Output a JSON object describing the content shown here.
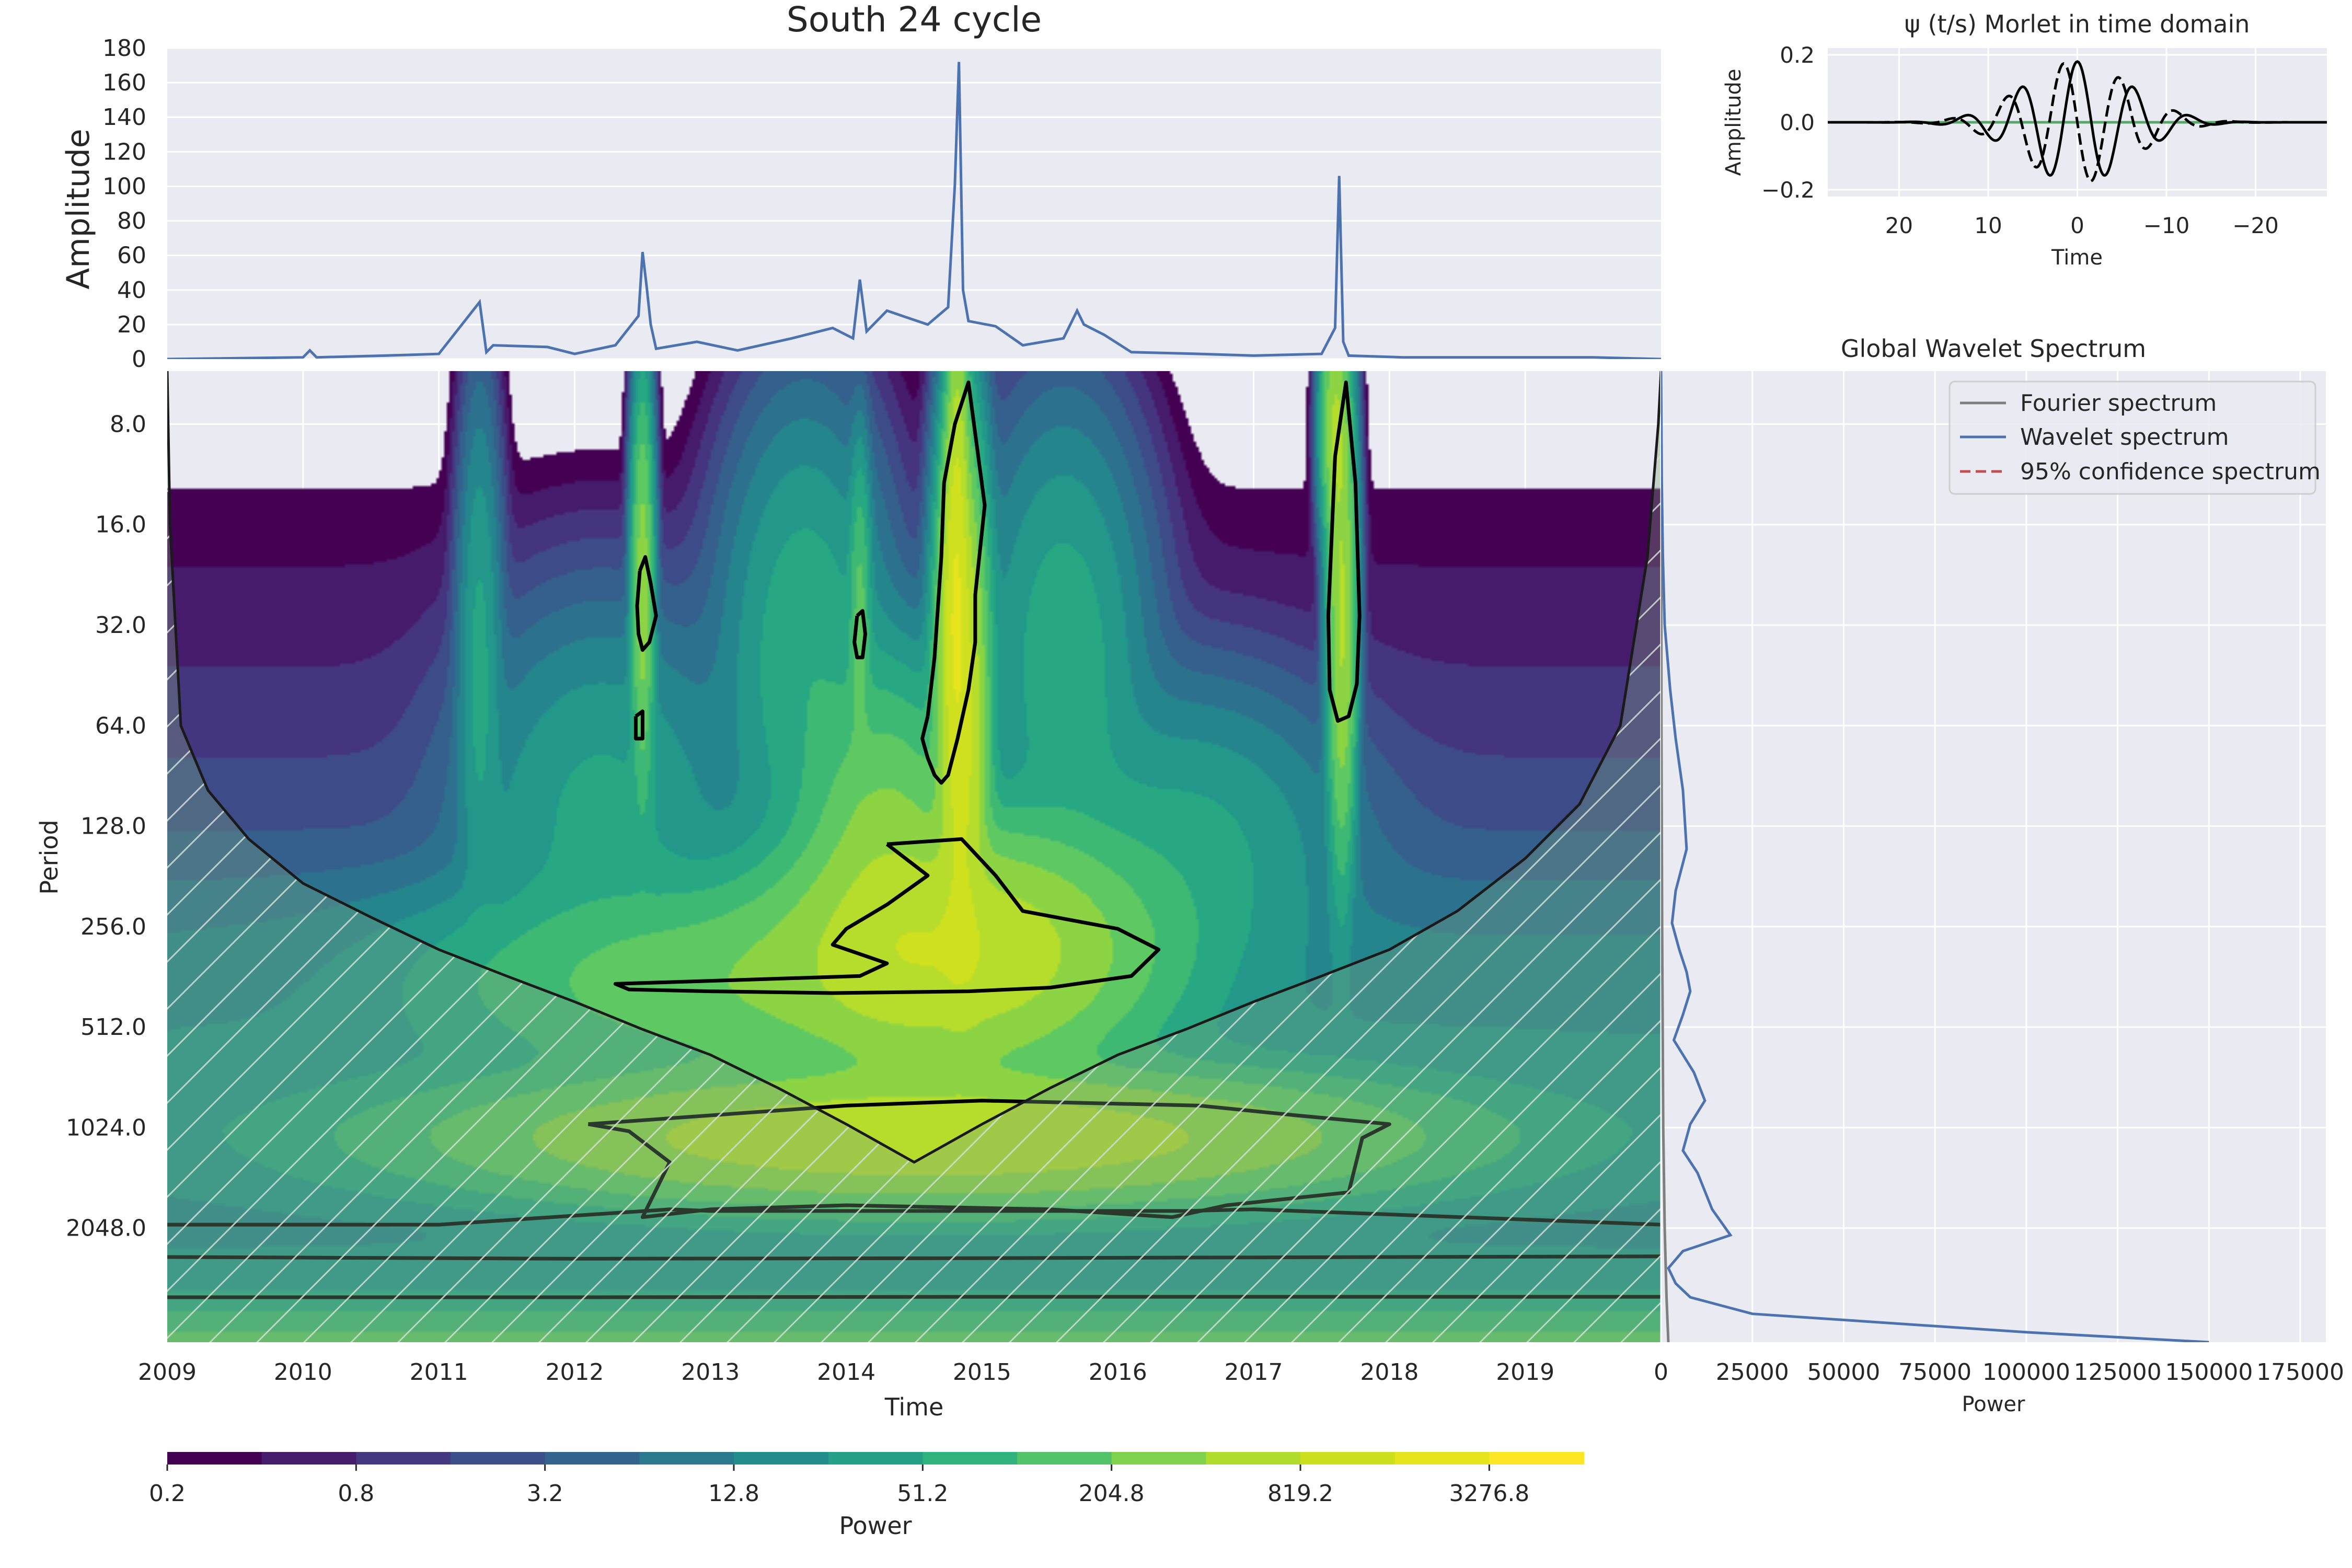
{
  "chart_data": [
    {
      "id": "amplitude",
      "type": "line",
      "title": "South 24 cycle",
      "xlabel": "",
      "ylabel": "Amplitude",
      "xlim": [
        2009.0,
        2020.0
      ],
      "ylim": [
        0,
        180
      ],
      "y_ticks": [
        0,
        20,
        40,
        60,
        80,
        100,
        120,
        140,
        160,
        180
      ],
      "grid": true,
      "color": "#4C72B0",
      "series": [
        {
          "x": [
            2009.0,
            2010.0,
            2010.05,
            2010.1,
            2010.6,
            2011.0,
            2011.3,
            2011.35,
            2011.4,
            2011.8,
            2012.0,
            2012.3,
            2012.47,
            2012.5,
            2012.53,
            2012.56,
            2012.6,
            2012.9,
            2013.2,
            2013.6,
            2013.9,
            2014.05,
            2014.1,
            2014.15,
            2014.3,
            2014.45,
            2014.6,
            2014.75,
            2014.8,
            2014.83,
            2014.86,
            2014.9,
            2015.1,
            2015.3,
            2015.6,
            2015.7,
            2015.75,
            2015.9,
            2016.1,
            2016.6,
            2017.0,
            2017.5,
            2017.6,
            2017.63,
            2017.66,
            2017.7,
            2018.1,
            2018.5,
            2019.0,
            2019.5,
            2020.0
          ],
          "y": [
            0,
            1,
            5,
            1,
            2,
            3,
            33,
            4,
            8,
            7,
            3,
            8,
            25,
            62,
            42,
            20,
            6,
            10,
            5,
            12,
            18,
            12,
            46,
            16,
            28,
            24,
            20,
            30,
            101,
            172,
            40,
            22,
            19,
            8,
            12,
            28,
            20,
            14,
            4,
            3,
            2,
            3,
            18,
            106,
            10,
            2,
            1,
            1,
            1,
            1,
            0
          ]
        }
      ]
    },
    {
      "id": "morlet",
      "type": "line",
      "title": "ψ (t/s) Morlet in time domain",
      "xlabel": "Time",
      "ylabel": "Amplitude",
      "xlim": [
        28,
        -28
      ],
      "ylim": [
        -0.22,
        0.22
      ],
      "x_ticks": [
        20,
        10,
        0,
        -10,
        -20
      ],
      "x_tick_labels": [
        "20",
        "10",
        "0",
        "−10",
        "−20"
      ],
      "y_ticks": [
        0.2,
        0.0,
        -0.2
      ],
      "y_tick_labels": [
        "0.2",
        "0.0",
        "−0.2"
      ],
      "wavelet_w0": 6,
      "wavelet_width": 12,
      "series": [
        {
          "part": "real",
          "style": "solid",
          "color": "#000000"
        },
        {
          "part": "imaginary",
          "style": "dashed",
          "color": "#000000"
        },
        {
          "part": "zero",
          "style": "solid",
          "color": "#55A868",
          "values": [
            0
          ]
        }
      ]
    },
    {
      "id": "wavelet-power",
      "type": "heatmap",
      "xlabel": "Time",
      "ylabel": "Period",
      "xlim": [
        2009.0,
        2020.0
      ],
      "x_ticks": [
        2009,
        2010,
        2011,
        2012,
        2013,
        2014,
        2015,
        2016,
        2017,
        2018,
        2019
      ],
      "x_tick_labels": [
        "2009",
        "2010",
        "2011",
        "2012",
        "2013",
        "2014",
        "2015",
        "2016",
        "2017",
        "2018",
        "2019"
      ],
      "y_scale": "log2",
      "y_range": [
        5.55,
        4500
      ],
      "y_ticks": [
        8.0,
        16.0,
        32.0,
        64.0,
        128.0,
        256.0,
        512.0,
        1024.0,
        2048.0
      ],
      "y_tick_labels": [
        "8.0",
        "16.0",
        "32.0",
        "64.0",
        "128.0",
        "256.0",
        "512.0",
        "1024.0",
        "2048.0"
      ],
      "colorbar": {
        "label": "Power",
        "levels": [
          0.2,
          0.4,
          0.8,
          1.6,
          3.2,
          6.4,
          12.8,
          25.6,
          51.2,
          102.4,
          204.8,
          409.6,
          819.2,
          1638.4,
          3276.8,
          6553.6
        ],
        "tick_labels": [
          "0.2",
          "0.8",
          "3.2",
          "12.8",
          "51.2",
          "204.8",
          "819.2",
          "3276.8"
        ],
        "colors": [
          "#440154",
          "#472d7b",
          "#3b528b",
          "#2c728e",
          "#21918c",
          "#28ae80",
          "#5ec962",
          "#addc30",
          "#d8e219",
          "#fde725"
        ]
      },
      "blobs": [
        {
          "t": 2014.85,
          "period": 60,
          "logspan_t": 0.09,
          "logspan_p": 1.3,
          "power": 2200
        },
        {
          "t": 2014.8,
          "period": 28,
          "logspan_t": 0.05,
          "logspan_p": 0.9,
          "power": 2000
        },
        {
          "t": 2014.82,
          "period": 12,
          "logspan_t": 0.04,
          "logspan_p": 1.1,
          "power": 900
        },
        {
          "t": 2014.8,
          "period": 300,
          "logspan_t": 0.7,
          "logspan_p": 0.6,
          "power": 1400
        },
        {
          "t": 2014.3,
          "period": 160,
          "logspan_t": 0.3,
          "logspan_p": 0.9,
          "power": 500
        },
        {
          "t": 2013.3,
          "period": 380,
          "logspan_t": 1.2,
          "logspan_p": 0.5,
          "power": 320
        },
        {
          "t": 2014.6,
          "period": 1100,
          "logspan_t": 1.8,
          "logspan_p": 0.35,
          "power": 1400
        },
        {
          "t": 2012.5,
          "period": 25,
          "logspan_t": 0.04,
          "logspan_p": 1.0,
          "power": 600
        },
        {
          "t": 2017.65,
          "period": 30,
          "logspan_t": 0.05,
          "logspan_p": 1.2,
          "power": 900
        },
        {
          "t": 2017.6,
          "period": 8,
          "logspan_t": 0.05,
          "logspan_p": 0.6,
          "power": 800
        },
        {
          "t": 2014.1,
          "period": 30,
          "logspan_t": 0.04,
          "logspan_p": 0.8,
          "power": 220
        },
        {
          "t": 2013.7,
          "period": 40,
          "logspan_t": 0.3,
          "logspan_p": 1.2,
          "power": 90
        },
        {
          "t": 2015.6,
          "period": 40,
          "logspan_t": 0.3,
          "logspan_p": 1.2,
          "power": 80
        },
        {
          "t": 2011.3,
          "period": 40,
          "logspan_t": 0.08,
          "logspan_p": 1.3,
          "power": 60
        },
        {
          "t": 2012.2,
          "period": 120,
          "logspan_t": 0.5,
          "logspan_p": 1.0,
          "power": 60
        },
        {
          "t": 2016.5,
          "period": 150,
          "logspan_t": 0.6,
          "logspan_p": 0.8,
          "power": 60
        }
      ],
      "background_levels": [
        {
          "period": 5.55,
          "power": 0.05
        },
        {
          "period": 16,
          "power": 0.3
        },
        {
          "period": 64,
          "power": 1.2
        },
        {
          "period": 128,
          "power": 3
        },
        {
          "period": 256,
          "power": 12
        },
        {
          "period": 512,
          "power": 25
        },
        {
          "period": 1024,
          "power": 30
        },
        {
          "period": 2048,
          "power": 20
        },
        {
          "period": 3000,
          "power": 40
        },
        {
          "period": 4500,
          "power": 300
        }
      ],
      "significance_contours": [
        {
          "t": [
            2014.3,
            2014.85,
            2015.1,
            2015.3,
            2016.0,
            2016.3,
            2016.1,
            2015.5,
            2014.9,
            2013.9,
            2013.0,
            2012.4,
            2012.3,
            2013.2,
            2014.1,
            2014.3,
            2013.9,
            2014.0,
            2014.3,
            2014.6,
            2014.3
          ],
          "period": [
            145,
            140,
            180,
            230,
            260,
            300,
            360,
            390,
            400,
            405,
            400,
            395,
            380,
            370,
            360,
            330,
            290,
            260,
            220,
            180,
            145
          ]
        },
        {
          "t": [
            2014.6,
            2014.65,
            2014.7,
            2014.72,
            2014.8,
            2014.9,
            2015.02,
            2014.95,
            2014.95,
            2014.9,
            2014.82,
            2014.75,
            2014.7,
            2014.65,
            2014.6,
            2014.56,
            2014.6
          ],
          "period": [
            60,
            40,
            20,
            12,
            8,
            6,
            14,
            26,
            36,
            50,
            70,
            90,
            95,
            90,
            80,
            70,
            60
          ]
        },
        {
          "t": [
            2012.48,
            2012.52,
            2012.56,
            2012.6,
            2012.55,
            2012.5,
            2012.47,
            2012.46,
            2012.48
          ],
          "period": [
            22,
            20,
            24,
            30,
            36,
            38,
            34,
            28,
            22
          ]
        },
        {
          "t": [
            2017.55,
            2017.6,
            2017.68,
            2017.75,
            2017.78,
            2017.76,
            2017.7,
            2017.62,
            2017.56,
            2017.55
          ],
          "period": [
            30,
            10,
            6,
            12,
            30,
            48,
            60,
            62,
            50,
            30
          ]
        },
        {
          "t": [
            2014.08,
            2014.12,
            2014.14,
            2014.12,
            2014.08,
            2014.06,
            2014.08
          ],
          "period": [
            30,
            29,
            34,
            40,
            40,
            36,
            30
          ]
        },
        {
          "t": [
            2012.45,
            2012.5,
            2012.5,
            2012.45,
            2012.45
          ],
          "period": [
            60,
            58,
            70,
            70,
            60
          ]
        },
        {
          "t": [
            2012.1,
            2014.0,
            2015.0,
            2016.6,
            2017.3,
            2018.0,
            2017.8,
            2017.7,
            2016.8,
            2016.4,
            2015.5,
            2014.0,
            2013.0,
            2012.5,
            2012.7,
            2012.4,
            2012.1
          ],
          "period": [
            1000,
            880,
            850,
            880,
            940,
            1000,
            1100,
            1600,
            1750,
            1900,
            1800,
            1750,
            1800,
            1900,
            1300,
            1050,
            1000
          ]
        },
        {
          "t": [
            2009.0,
            2011.0,
            2012.7,
            2013.0,
            2016.5,
            2017.0,
            2020.0
          ],
          "period": [
            2000,
            2000,
            1800,
            1820,
            1820,
            1800,
            2000
          ]
        },
        {
          "t": [
            2009.0,
            2012.0,
            2015.0,
            2018.0,
            2020.0
          ],
          "period": [
            2500,
            2530,
            2520,
            2500,
            2490
          ]
        },
        {
          "t": [
            2009.0,
            2012.0,
            2015.0,
            2018.0,
            2020.0
          ],
          "period": [
            3300,
            3300,
            3290,
            3290,
            3290
          ]
        }
      ],
      "cone_of_influence": {
        "t": [
          2009.0,
          2009.02,
          2009.1,
          2009.3,
          2009.6,
          2010.0,
          2010.5,
          2011.0,
          2011.5,
          2012.0,
          2012.5,
          2013.0,
          2013.5,
          2014.0,
          2014.5,
          2015.0,
          2015.5,
          2016.0,
          2016.5,
          2017.0,
          2017.5,
          2018.0,
          2018.5,
          2019.0,
          2019.4,
          2019.7,
          2019.9,
          2019.98,
          2020.0
        ],
        "period": [
          5.55,
          16,
          64,
          100,
          140,
          190,
          240,
          300,
          360,
          430,
          520,
          620,
          780,
          1000,
          1300,
          1000,
          780,
          620,
          520,
          430,
          360,
          300,
          230,
          160,
          110,
          64,
          20,
          8,
          5.55
        ]
      }
    },
    {
      "id": "global-wavelet-spectrum",
      "type": "line",
      "title": "Global Wavelet Spectrum",
      "xlabel": "Power",
      "ylabel": "",
      "xlim": [
        0,
        182000
      ],
      "x_ticks": [
        0,
        25000,
        50000,
        75000,
        100000,
        125000,
        150000,
        175000
      ],
      "x_tick_labels": [
        "0",
        "25000",
        "50000",
        "75000",
        "100000",
        "125000",
        "150000",
        "175000"
      ],
      "y_scale": "log2",
      "legend_position": "top-right",
      "series": [
        {
          "name": "Fourier spectrum",
          "color": "#7f7f7f",
          "style": "solid",
          "power": [
            0,
            100,
            300,
            600,
            1000,
            1500,
            2000
          ],
          "period": [
            5.55,
            64,
            256,
            1024,
            2048,
            3300,
            4500
          ]
        },
        {
          "name": "Wavelet spectrum",
          "color": "#4C72B0",
          "style": "solid",
          "power": [
            0,
            200,
            500,
            1000,
            2500,
            4000,
            6000,
            7000,
            4000,
            3000,
            5000,
            7000,
            8000,
            6000,
            3500,
            9000,
            12000,
            8000,
            6000,
            10000,
            14000,
            19000,
            6000,
            2000,
            4000,
            8000,
            25000,
            100000,
            150000
          ],
          "period": [
            5.55,
            12,
            20,
            32,
            50,
            70,
            100,
            150,
            200,
            250,
            300,
            350,
            400,
            470,
            560,
            700,
            850,
            1000,
            1200,
            1400,
            1800,
            2150,
            2400,
            2700,
            3000,
            3300,
            3700,
            4200,
            4500
          ]
        },
        {
          "name": "95% confidence spectrum",
          "color": "#C44E52",
          "style": "dashed",
          "power": [],
          "period": []
        }
      ]
    }
  ]
}
